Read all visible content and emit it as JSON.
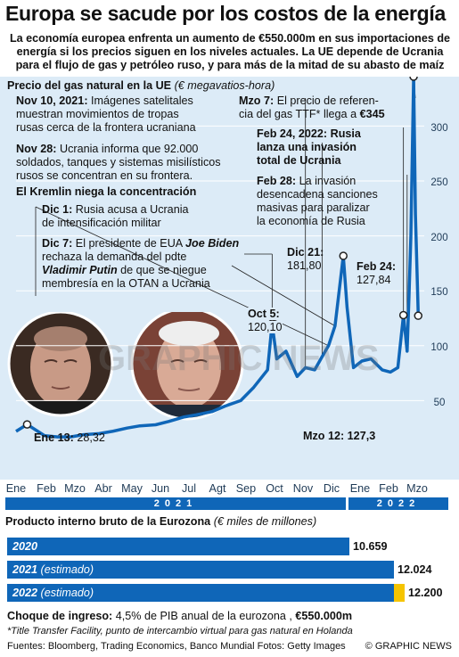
{
  "title": "Europa se sacude por los costos de la energía",
  "subtitle": [
    "La economía europea enfrenta un aumento de €550.000m en sus importaciones de",
    "energía si los precios siguen en los niveles actuales. La  UE depende de Ucrania",
    "para el flujo de gas y petróleo ruso, y para más de la mitad de su abasto de maíz"
  ],
  "price_chart": {
    "title_bold": "Precio del gas natural en la UE",
    "title_unit": "(€ megavatios-hora)"
  },
  "annotations": {
    "nov10": [
      "Nov 10, 2021:",
      "Imágenes satelitales",
      "muestran movimientos de tropas",
      "rusas cerca de la frontera ucraniana"
    ],
    "nov28": [
      "Nov 28:",
      "Ucrania informa que 92.000",
      "soldados, tanques y sistemas misilísticos",
      "rusos se concentran en su frontera."
    ],
    "kremlin": "El Kremlin niega la concentración",
    "dic1": [
      "Dic 1:",
      "Rusia acusa a Ucrania",
      "de intensificación militar"
    ],
    "dic7": [
      "Dic 7:",
      "El presidente de EUA",
      "Joe Biden",
      "rechaza la demanda del pdte",
      "Vladimir Putin",
      "de que se niegue",
      "membresía en la OTAN a Ucrania"
    ],
    "mzo7": [
      "Mzo 7:",
      "El precio de referen-",
      "cia del gas TTF* llega a",
      "€345"
    ],
    "feb24": [
      "Feb 24, 2022: Rusia",
      "lanza una invasión",
      "total de Ucrania"
    ],
    "feb28": [
      "Feb 28:",
      "La invasión",
      "desencadena sanciones",
      "masivas para paralizar",
      "la economía de Rusia"
    ],
    "oct5": [
      "Oct 5:",
      "120,10"
    ],
    "dic21": [
      "Dic 21:",
      "181,80"
    ],
    "feb24v": [
      "Feb 24:",
      "127,84"
    ],
    "ene13": [
      "Ene 13:",
      "28,32"
    ],
    "mzo12": "Mzo 12: 127,3"
  },
  "watermark": "GRAPHIC NEWS",
  "year_labels": [
    "2021",
    "2022"
  ],
  "colors": {
    "line": "#0f66b8",
    "panel": "#dcebf7",
    "year_bar": "#0f66b8",
    "highlight": "#f5c400",
    "leader": "#222222"
  },
  "chart_data": [
    {
      "type": "line",
      "title": "Precio del gas natural en la UE",
      "ylabel": "(€ megavatios-hora)",
      "ylim": [
        0,
        350
      ],
      "y_ticks": [
        50,
        100,
        150,
        200,
        250,
        300
      ],
      "x_ticks": [
        "Ene",
        "Feb",
        "Mzo",
        "Abr",
        "May",
        "Jun",
        "Jul",
        "Agt",
        "Sep",
        "Oct",
        "Nov",
        "Dic",
        "Ene",
        "Feb",
        "Mzo"
      ],
      "series": [
        {
          "x": [
            "2021-01-01",
            "2021-01-13",
            "2021-02-01",
            "2021-02-15",
            "2021-03-01",
            "2021-03-15",
            "2021-04-01",
            "2021-04-15",
            "2021-05-01",
            "2021-05-15",
            "2021-06-01",
            "2021-06-15",
            "2021-07-01",
            "2021-07-15",
            "2021-08-01",
            "2021-08-15",
            "2021-09-01",
            "2021-09-15",
            "2021-09-30",
            "2021-10-05",
            "2021-10-10",
            "2021-10-20",
            "2021-11-01",
            "2021-11-10",
            "2021-11-20",
            "2021-11-28",
            "2021-12-05",
            "2021-12-12",
            "2021-12-21",
            "2021-12-25",
            "2022-01-01",
            "2022-01-10",
            "2022-01-20",
            "2022-02-01",
            "2022-02-10",
            "2022-02-18",
            "2022-02-24",
            "2022-02-28",
            "2022-03-02",
            "2022-03-04",
            "2022-03-07",
            "2022-03-09",
            "2022-03-12"
          ],
          "y": [
            22,
            28.32,
            18,
            17,
            17,
            19,
            20,
            22,
            25,
            27,
            28,
            31,
            35,
            37,
            40,
            45,
            50,
            62,
            78,
            120.1,
            88,
            95,
            72,
            80,
            78,
            90,
            100,
            118,
            181.8,
            135,
            80,
            86,
            88,
            78,
            76,
            80,
            127.84,
            95,
            145,
            200,
            345,
            220,
            127.3
          ]
        }
      ]
    },
    {
      "type": "bar",
      "title": "Producto interno bruto de la Eurozona",
      "ylabel": "(€ miles de millones)",
      "categories": [
        "2020",
        "2021 (estimado)",
        "2022 (estimado)"
      ],
      "values": [
        10659,
        12024,
        12200
      ],
      "value_labels": [
        "10.659",
        "12.024",
        "12.200"
      ]
    }
  ],
  "gdp": {
    "title_bold": "Producto interno bruto de la Eurozona",
    "title_unit": "(€ miles de millones)",
    "bars": [
      {
        "year": "2020",
        "est": ""
      },
      {
        "year": "2021",
        "est": "(estimado)"
      },
      {
        "year": "2022",
        "est": "(estimado)"
      }
    ]
  },
  "shock": {
    "label": "Choque de ingreso:",
    "text": "4,5% de PIB anual de la eurozona ,",
    "value": "€550.000m"
  },
  "footnote": "*Title Transfer Facility, punto de intercambio virtual para gas natural en Holanda",
  "sources": "Fuentes: Bloomberg, Trading Economics, Banco Mundial  Fotos: Getty Images",
  "credit": "© GRAPHIC NEWS"
}
